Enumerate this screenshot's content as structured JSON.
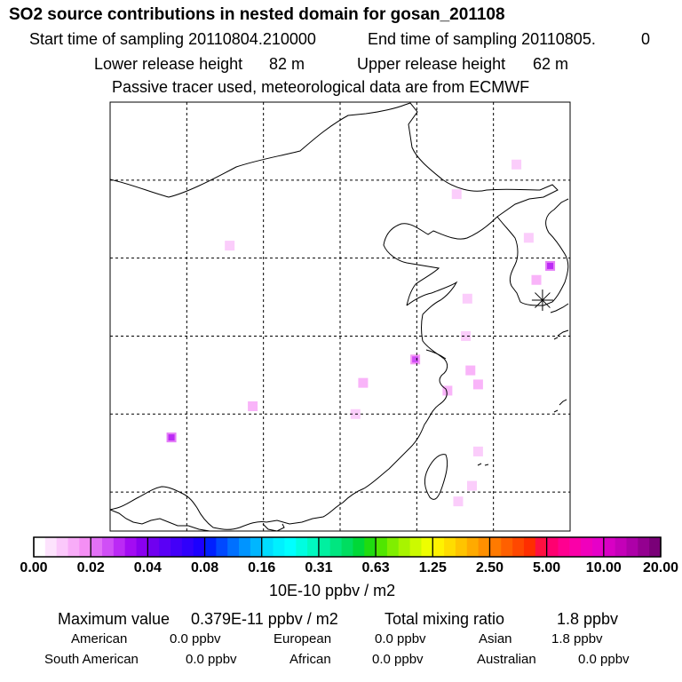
{
  "header": {
    "title": "SO2 source contributions in nested domain for gosan_201108",
    "start_label": "Start time of sampling 20110804.210000",
    "end_label": "End time of sampling 20110805.",
    "end_suffix": "0",
    "lower_label": "Lower release height",
    "lower_value": "82 m",
    "upper_label": "Upper release height",
    "upper_value": "62 m",
    "note": "Passive tracer used, meteorological data are from ECMWF"
  },
  "chart_data": {
    "type": "heatmap",
    "title": "SO2 source contributions in nested domain for gosan_201108",
    "units": "10E-10 ppbv / m2",
    "colorbar": {
      "tick_labels": [
        "0.00",
        "0.02",
        "0.04",
        "0.08",
        "0.16",
        "0.31",
        "0.63",
        "1.25",
        "2.50",
        "5.00",
        "10.00",
        "20.00"
      ],
      "colors": [
        [
          "#ffffff",
          "#fde3fd",
          "#fbc8fb",
          "#f8acf8",
          "#f48ff4"
        ],
        [
          "#e271f6",
          "#d04ff6",
          "#bb2af5",
          "#a30cf3",
          "#8a00f0"
        ],
        [
          "#7000f0",
          "#5a00f5",
          "#4300f8",
          "#3000fb",
          "#1c00ff"
        ],
        [
          "#0020ff",
          "#0049ff",
          "#0070ff",
          "#0094ff",
          "#00b6ff"
        ],
        [
          "#00dcff",
          "#00f0ff",
          "#00ffff",
          "#00fde0",
          "#00fac0"
        ],
        [
          "#00f0a0",
          "#00e680",
          "#00dd60",
          "#00d838",
          "#20dc10"
        ],
        [
          "#50e600",
          "#80ee00",
          "#a8f400",
          "#ccfa00",
          "#eefe00"
        ],
        [
          "#fff200",
          "#ffdc00",
          "#ffc400",
          "#ffaa00",
          "#ff9000"
        ],
        [
          "#ff7a00",
          "#ff6000",
          "#ff4800",
          "#ff2e00",
          "#ff1040"
        ],
        [
          "#ff0070",
          "#ff0090",
          "#fa00a8",
          "#f000bc",
          "#e600c8"
        ],
        [
          "#d800c4",
          "#c400b8",
          "#ad00a8",
          "#940090",
          "#7a0078"
        ]
      ]
    },
    "receptor": {
      "name": "gosan",
      "lon": 126.2,
      "lat": 33.3
    },
    "cells": [
      {
        "lon": 117.9,
        "lat": 29.5,
        "level": 3
      },
      {
        "lon": 107.3,
        "lat": 26.5,
        "level": 2
      },
      {
        "lon": 105.8,
        "lat": 36.8,
        "level": 1
      },
      {
        "lon": 120.0,
        "lat": 27.5,
        "level": 2
      },
      {
        "lon": 120.7,
        "lat": 20.4,
        "level": 1
      },
      {
        "lon": 125.3,
        "lat": 37.3,
        "level": 1
      },
      {
        "lon": 126.7,
        "lat": 35.5,
        "level": 4
      },
      {
        "lon": 125.8,
        "lat": 34.6,
        "level": 2
      },
      {
        "lon": 120.6,
        "lat": 40.1,
        "level": 1
      },
      {
        "lon": 122.0,
        "lat": 27.9,
        "level": 2
      },
      {
        "lon": 121.5,
        "lat": 28.8,
        "level": 2
      },
      {
        "lon": 121.2,
        "lat": 31.0,
        "level": 1
      },
      {
        "lon": 121.3,
        "lat": 33.4,
        "level": 1
      },
      {
        "lon": 122.0,
        "lat": 23.6,
        "level": 1
      },
      {
        "lon": 121.6,
        "lat": 21.4,
        "level": 1
      },
      {
        "lon": 114.5,
        "lat": 28.0,
        "level": 2
      },
      {
        "lon": 102.0,
        "lat": 24.5,
        "level": 4
      },
      {
        "lon": 114.0,
        "lat": 26.0,
        "level": 1
      },
      {
        "lon": 124.5,
        "lat": 42.0,
        "level": 1
      }
    ],
    "xlim": [
      98,
      128
    ],
    "ylim": [
      18.5,
      46
    ],
    "grid_lons": [
      103,
      108,
      113,
      118,
      123
    ],
    "grid_lats": [
      21,
      26,
      31,
      36,
      41
    ],
    "grid": true
  },
  "footer": {
    "max_label": "Maximum value",
    "max_value": "0.379E-11 ppbv / m2",
    "total_label": "Total mixing ratio",
    "total_value": "1.8 ppbv",
    "regions": [
      {
        "name": "American",
        "value": "0.0 ppbv"
      },
      {
        "name": "European",
        "value": "0.0 ppbv"
      },
      {
        "name": "Asian",
        "value": "1.8 ppbv"
      },
      {
        "name": "South American",
        "value": "0.0 ppbv"
      },
      {
        "name": "African",
        "value": "0.0 ppbv"
      },
      {
        "name": "Australian",
        "value": "0.0 ppbv"
      }
    ]
  }
}
